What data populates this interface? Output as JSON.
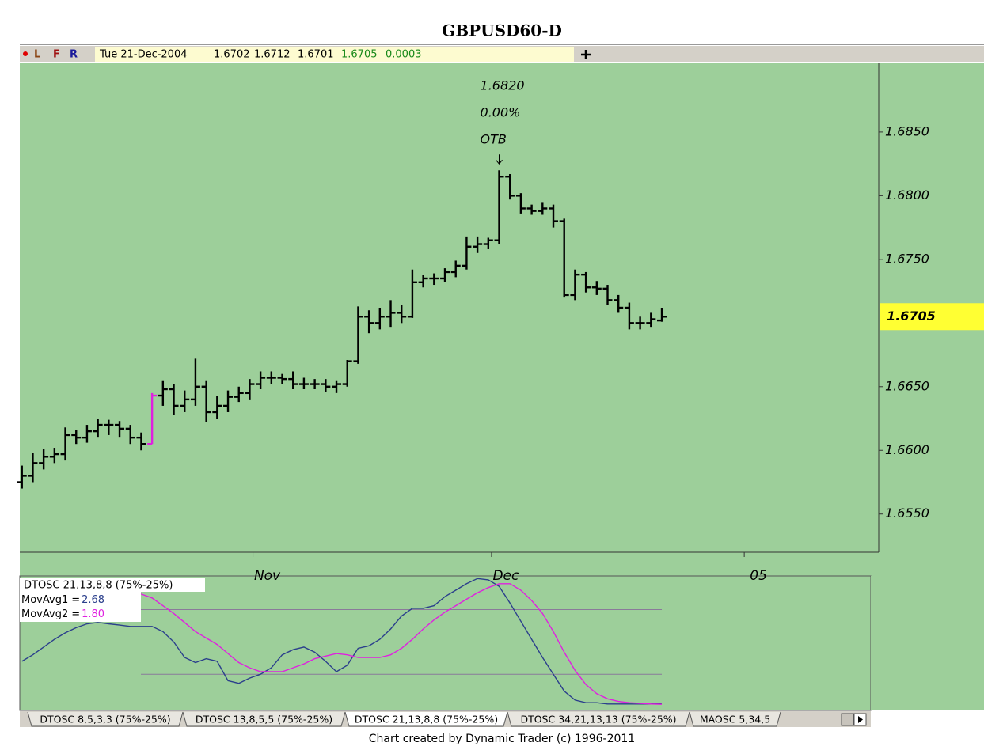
{
  "chart_data": [
    {
      "type": "ohlc",
      "title": "GBPUSD60-D",
      "toolbar": [
        "L",
        "F",
        "R"
      ],
      "info": {
        "date": "Tue 21-Dec-2004",
        "change": 0.0003
      },
      "annotations": [
        "1.6820",
        "0.00%",
        "OTB"
      ],
      "annotation_bar": 44,
      "color": "#000000",
      "highlight_bar": 12,
      "highlight_color": "#e020e0",
      "open": [
        1.6575,
        1.658,
        1.659,
        1.6595,
        1.6597,
        1.6612,
        1.661,
        1.6615,
        1.662,
        1.662,
        1.6617,
        1.661,
        1.6605,
        1.6643,
        1.6648,
        1.6635,
        1.664,
        1.665,
        1.663,
        1.6635,
        1.6642,
        1.6645,
        1.6652,
        1.6657,
        1.6657,
        1.6656,
        1.6652,
        1.6652,
        1.6652,
        1.665,
        1.6652,
        1.667,
        1.6705,
        1.67,
        1.6705,
        1.6708,
        1.6705,
        1.6732,
        1.6735,
        1.6735,
        1.674,
        1.6745,
        1.676,
        1.6762,
        1.6765,
        1.6815,
        1.68,
        1.679,
        1.6788,
        1.679,
        1.678,
        1.6722,
        1.6738,
        1.6728,
        1.6727,
        1.6718,
        1.6712,
        1.67,
        1.67,
        1.6702
      ],
      "high": [
        1.6588,
        1.6598,
        1.6601,
        1.6602,
        1.6618,
        1.6616,
        1.662,
        1.6625,
        1.6624,
        1.6623,
        1.662,
        1.6614,
        1.6645,
        1.6655,
        1.6652,
        1.6647,
        1.6672,
        1.6655,
        1.6643,
        1.6647,
        1.665,
        1.6656,
        1.6662,
        1.6662,
        1.666,
        1.6662,
        1.6657,
        1.6656,
        1.6656,
        1.6655,
        1.6671,
        1.6713,
        1.671,
        1.6712,
        1.6718,
        1.6714,
        1.6742,
        1.6738,
        1.6739,
        1.6743,
        1.6749,
        1.6768,
        1.6768,
        1.6767,
        1.682,
        1.6817,
        1.6802,
        1.6793,
        1.6795,
        1.6793,
        1.6782,
        1.6742,
        1.674,
        1.6733,
        1.673,
        1.6722,
        1.6716,
        1.6705,
        1.6708,
        1.6712
      ],
      "low": [
        1.657,
        1.6575,
        1.6585,
        1.659,
        1.6592,
        1.6605,
        1.6606,
        1.661,
        1.6612,
        1.661,
        1.6605,
        1.66,
        1.6605,
        1.6635,
        1.6628,
        1.663,
        1.6635,
        1.6622,
        1.6625,
        1.663,
        1.6638,
        1.664,
        1.6648,
        1.6652,
        1.6652,
        1.6648,
        1.6648,
        1.6648,
        1.6646,
        1.6645,
        1.665,
        1.6668,
        1.6692,
        1.6695,
        1.6697,
        1.67,
        1.6704,
        1.6728,
        1.673,
        1.6732,
        1.6736,
        1.6742,
        1.6755,
        1.6758,
        1.6762,
        1.6797,
        1.6786,
        1.6785,
        1.6785,
        1.6775,
        1.672,
        1.6718,
        1.6724,
        1.6722,
        1.6714,
        1.6708,
        1.6695,
        1.6695,
        1.6697,
        1.6701
      ],
      "close": [
        1.658,
        1.659,
        1.6595,
        1.6597,
        1.6612,
        1.661,
        1.6615,
        1.662,
        1.662,
        1.6617,
        1.661,
        1.6605,
        1.6643,
        1.6648,
        1.6635,
        1.664,
        1.665,
        1.663,
        1.6635,
        1.6642,
        1.6645,
        1.6652,
        1.6657,
        1.6657,
        1.6656,
        1.6652,
        1.6652,
        1.6652,
        1.665,
        1.6652,
        1.667,
        1.6705,
        1.67,
        1.6705,
        1.6708,
        1.6705,
        1.6732,
        1.6735,
        1.6735,
        1.674,
        1.6745,
        1.676,
        1.6762,
        1.6765,
        1.6815,
        1.68,
        1.679,
        1.6788,
        1.679,
        1.678,
        1.6722,
        1.6738,
        1.6728,
        1.6727,
        1.6718,
        1.6712,
        1.67,
        1.67,
        1.6703,
        1.6705
      ],
      "xlim": [
        -0.2,
        79
      ],
      "xticks": [
        {
          "value": 21.3,
          "label": "Nov"
        },
        {
          "value": 43.3,
          "label": "Dec"
        },
        {
          "value": 66.6,
          "label": "05"
        }
      ],
      "ylim": [
        1.652,
        1.6904
      ],
      "yticks": [
        {
          "value": 1.655,
          "label": "1.6550"
        },
        {
          "value": 1.66,
          "label": "1.6600"
        },
        {
          "value": 1.665,
          "label": "1.6650"
        },
        {
          "value": 1.675,
          "label": "1.6750"
        },
        {
          "value": 1.68,
          "label": "1.6800"
        },
        {
          "value": 1.685,
          "label": "1.6850"
        }
      ]
    },
    {
      "type": "line",
      "title": "DTOSC 21,13,8,8 (75%-25%)",
      "legend_separator": "=",
      "xlim": [
        -0.2,
        79
      ],
      "ylim": [
        -3,
        101
      ],
      "levels": [
        25,
        75
      ],
      "series": [
        {
          "name": "MovAvg1",
          "color": "#2b3f8c",
          "value_label": "2.68",
          "values": [
            35,
            40,
            46,
            52,
            57,
            61,
            64,
            65,
            64,
            63,
            62,
            62,
            62,
            58,
            50,
            38,
            34,
            37,
            35,
            20,
            18,
            22,
            25,
            30,
            40,
            44,
            46,
            42,
            35,
            27,
            32,
            45,
            47,
            52,
            60,
            70,
            76,
            76,
            78,
            85,
            90,
            95,
            99,
            98,
            93,
            80,
            66,
            52,
            38,
            25,
            12,
            5,
            3,
            3,
            2,
            2,
            2,
            2,
            2,
            2.68
          ]
        },
        {
          "name": "MovAvg2",
          "color": "#e020e0",
          "value_label": "1.80",
          "values": [
            70,
            74,
            78,
            82,
            85,
            87,
            88,
            89,
            89,
            88,
            88,
            87,
            84,
            78,
            72,
            65,
            58,
            53,
            48,
            41,
            34,
            30,
            27,
            27,
            27,
            30,
            33,
            37,
            39,
            41,
            40,
            38,
            38,
            38,
            40,
            45,
            52,
            60,
            67,
            73,
            78,
            83,
            88,
            92,
            95,
            95,
            90,
            82,
            72,
            58,
            42,
            28,
            17,
            10,
            6,
            4,
            3,
            2.5,
            2,
            1.8
          ]
        }
      ],
      "tabs": [
        "DTOSC 8,5,3,3 (75%-25%)",
        "DTOSC 13,8,5,5 (75%-25%)",
        "DTOSC 21,13,8,8 (75%-25%)",
        "DTOSC 34,21,13,13 (75%-25%)",
        "MAOSC 5,34,5"
      ],
      "active_tab": 2,
      "footer": "Chart created by Dynamic Trader  (c) 1996-2011"
    }
  ]
}
